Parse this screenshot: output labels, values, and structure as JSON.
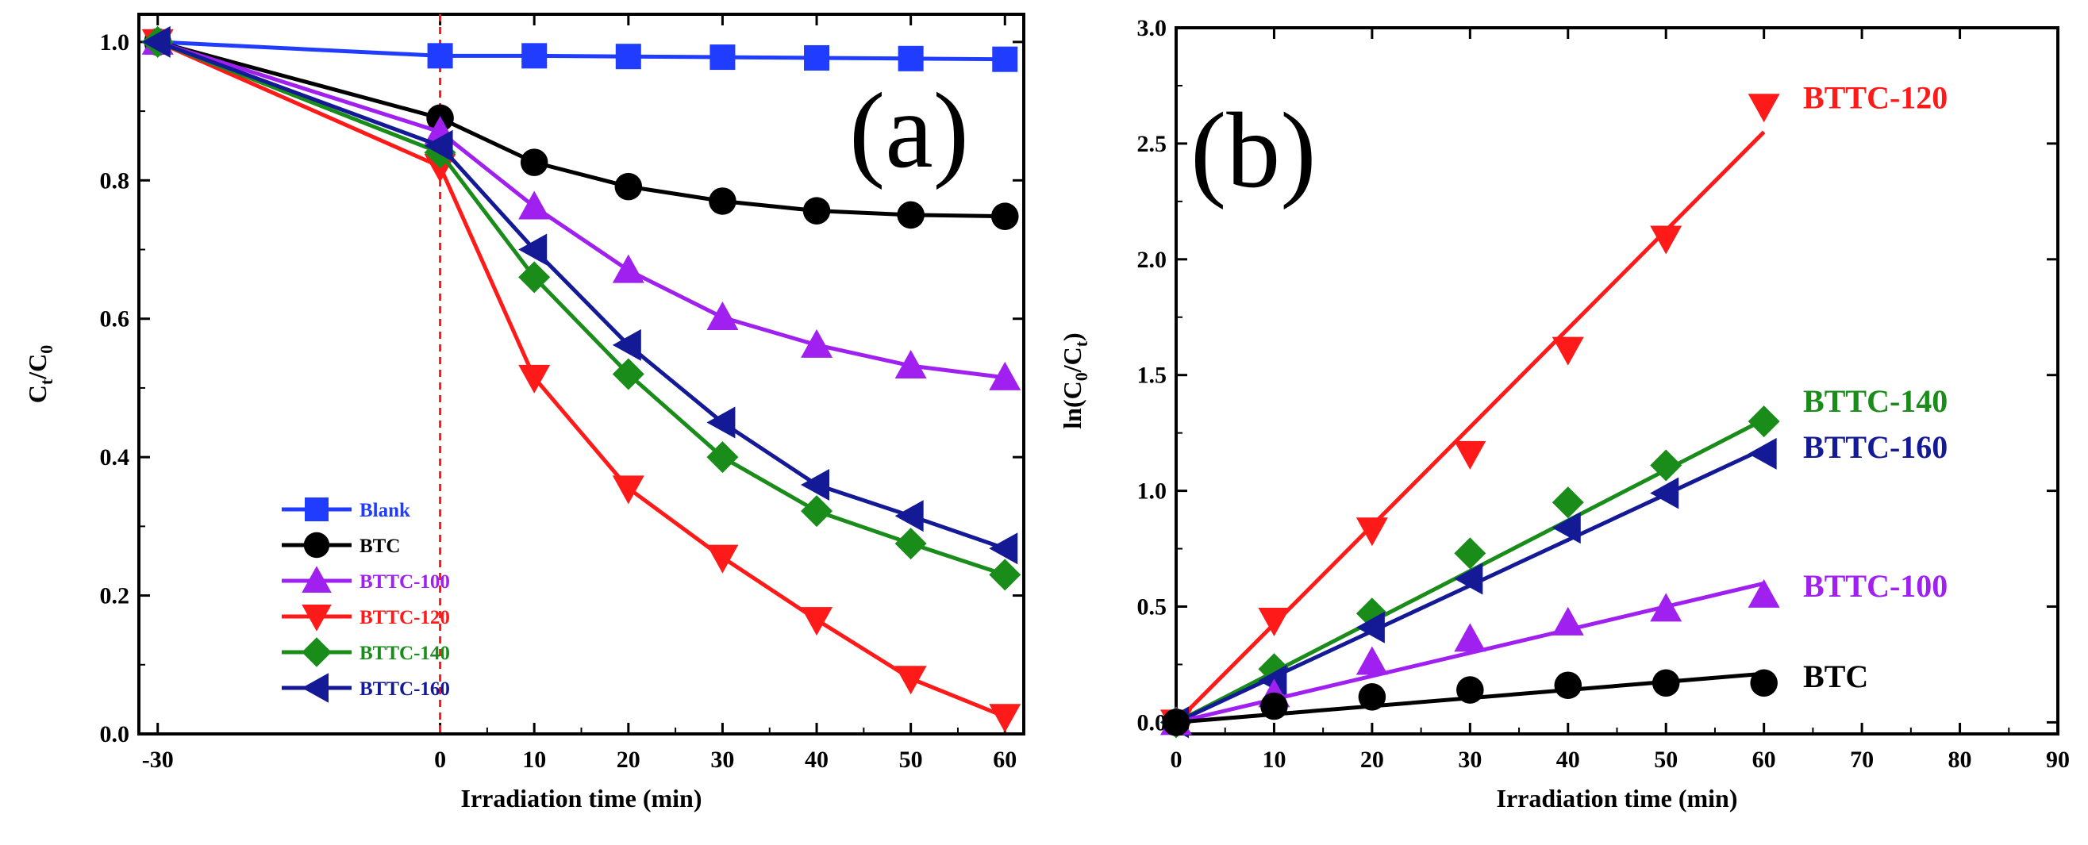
{
  "figure": {
    "colors": {
      "Blank": "#1f3cff",
      "BTC": "#000000",
      "BTTC-100": "#a020f0",
      "BTTC-120": "#ff1a1a",
      "BTTC-140": "#1a8c1a",
      "BTTC-160": "#141a96",
      "dashed_line": "#ff1a1a"
    }
  },
  "chart_data": [
    {
      "panel": "a",
      "panel_label": "(a)",
      "type": "line",
      "xlabel": "Irradiation time (min)",
      "ylabel": "C_t/C_0",
      "ylabel_parts": {
        "main1": "C",
        "sub1": "t",
        "sep": "/C",
        "sub2": "0"
      },
      "xlim": [
        -32,
        62
      ],
      "ylim": [
        0.0,
        1.04
      ],
      "xticks": [
        -30,
        0,
        10,
        20,
        30,
        40,
        50,
        60
      ],
      "yticks": [
        0.0,
        0.2,
        0.4,
        0.6,
        0.8,
        1.0
      ],
      "xtick_labels": [
        "-30",
        "0",
        "10",
        "20",
        "30",
        "40",
        "50",
        "60"
      ],
      "ytick_labels": [
        "0.0",
        "0.2",
        "0.4",
        "0.6",
        "0.8",
        "1.0"
      ],
      "vline_x": 0,
      "legend_position": "bottom-left",
      "x": [
        -30,
        0,
        10,
        20,
        30,
        40,
        50,
        60
      ],
      "series": [
        {
          "name": "Blank",
          "marker": "square",
          "values": [
            1.0,
            0.98,
            0.98,
            0.979,
            0.978,
            0.977,
            0.976,
            0.975
          ]
        },
        {
          "name": "BTC",
          "marker": "circle",
          "values": [
            1.0,
            0.89,
            0.826,
            0.791,
            0.77,
            0.756,
            0.75,
            0.748
          ]
        },
        {
          "name": "BTTC-100",
          "marker": "triangle-up",
          "values": [
            1.0,
            0.87,
            0.762,
            0.67,
            0.602,
            0.562,
            0.532,
            0.515
          ]
        },
        {
          "name": "BTTC-120",
          "marker": "triangle-down",
          "values": [
            1.0,
            0.82,
            0.515,
            0.355,
            0.255,
            0.165,
            0.08,
            0.025
          ]
        },
        {
          "name": "BTTC-140",
          "marker": "diamond",
          "values": [
            1.0,
            0.84,
            0.66,
            0.52,
            0.4,
            0.322,
            0.275,
            0.23
          ]
        },
        {
          "name": "BTTC-160",
          "marker": "triangle-left",
          "values": [
            1.0,
            0.85,
            0.7,
            0.562,
            0.45,
            0.36,
            0.315,
            0.268
          ]
        }
      ]
    },
    {
      "panel": "b",
      "panel_label": "(b)",
      "type": "scatter",
      "xlabel": "Irradiation time (min)",
      "ylabel": "ln(C_0/C_t)",
      "ylabel_parts": {
        "pre": "ln(C",
        "sub1": "0",
        "mid": "/C",
        "sub2": "t",
        "post": ")"
      },
      "xlim": [
        0,
        90
      ],
      "ylim": [
        -0.05,
        3.0
      ],
      "xticks": [
        0,
        10,
        20,
        30,
        40,
        50,
        60,
        70,
        80,
        90
      ],
      "yticks": [
        0.0,
        0.5,
        1.0,
        1.5,
        2.0,
        2.5,
        3.0
      ],
      "xtick_labels": [
        "0",
        "10",
        "20",
        "30",
        "40",
        "50",
        "60",
        "70",
        "80",
        "90"
      ],
      "ytick_labels": [
        "0.0",
        "0.5",
        "1.0",
        "1.5",
        "2.0",
        "2.5",
        "3.0"
      ],
      "x": [
        0,
        10,
        20,
        30,
        40,
        50,
        60
      ],
      "fit_x_range": [
        0,
        60
      ],
      "series": [
        {
          "name": "BTTC-120",
          "marker": "triangle-down",
          "values": [
            0.0,
            0.44,
            0.83,
            1.16,
            1.61,
            2.09,
            2.66
          ],
          "fit_slope": 0.0425
        },
        {
          "name": "BTTC-140",
          "marker": "diamond",
          "values": [
            0.0,
            0.23,
            0.47,
            0.73,
            0.95,
            1.11,
            1.3
          ],
          "fit_slope": 0.0218
        },
        {
          "name": "BTTC-160",
          "marker": "triangle-left",
          "values": [
            0.0,
            0.18,
            0.41,
            0.62,
            0.84,
            0.99,
            1.16
          ],
          "fit_slope": 0.0197
        },
        {
          "name": "BTTC-100",
          "marker": "triangle-up",
          "values": [
            0.0,
            0.12,
            0.26,
            0.36,
            0.43,
            0.49,
            0.55
          ],
          "fit_slope": 0.01
        },
        {
          "name": "BTC",
          "marker": "circle",
          "values": [
            0.0,
            0.07,
            0.11,
            0.14,
            0.16,
            0.17,
            0.17
          ],
          "fit_slope": 0.0035
        }
      ],
      "end_labels": [
        {
          "series": "BTTC-120",
          "text": "BTTC-120",
          "anchor_y": 2.7
        },
        {
          "series": "BTTC-140",
          "text": "BTTC-140",
          "anchor_y": 1.39
        },
        {
          "series": "BTTC-160",
          "text": "BTTC-160",
          "anchor_y": 1.19
        },
        {
          "series": "BTTC-100",
          "text": "BTTC-100",
          "anchor_y": 0.59
        },
        {
          "series": "BTC",
          "text": "BTC",
          "anchor_y": 0.2
        }
      ]
    }
  ]
}
